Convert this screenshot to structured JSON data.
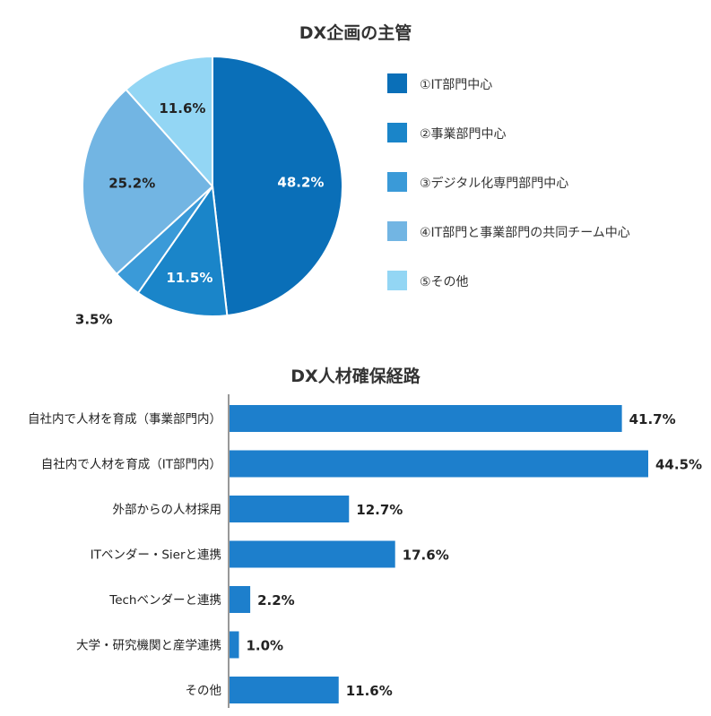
{
  "chart_data": [
    {
      "type": "pie",
      "title": "DX企画の主管",
      "slices": [
        {
          "label": "①IT部門中心",
          "value": 48.2,
          "value_label": "48.2%",
          "color": "#0a6fb8"
        },
        {
          "label": "②事業部門中心",
          "value": 11.5,
          "value_label": "11.5%",
          "color": "#1a85c9"
        },
        {
          "label": "③デジタル化専門部門中心",
          "value": 3.5,
          "value_label": "3.5%",
          "color": "#3a9ad8"
        },
        {
          "label": "④IT部門と事業部門の共同チーム中心",
          "value": 25.2,
          "value_label": "25.2%",
          "color": "#72b5e3"
        },
        {
          "label": "⑤その他",
          "value": 11.6,
          "value_label": "11.6%",
          "color": "#93d6f4"
        }
      ],
      "legend": "right"
    },
    {
      "type": "bar",
      "orientation": "horizontal",
      "title": "DX人材確保経路",
      "categories": [
        "自社内で人材を育成（事業部門内）",
        "自社内で人材を育成（IT部門内）",
        "外部からの人材採用",
        "ITベンダー・Sierと連携",
        "Techベンダーと連携",
        "大学・研究機関と産学連携",
        "その他"
      ],
      "values": [
        41.7,
        44.5,
        12.7,
        17.6,
        2.2,
        1.0,
        11.6
      ],
      "value_labels": [
        "41.7%",
        "44.5%",
        "12.7%",
        "17.6%",
        "2.2%",
        "1.0%",
        "11.6%"
      ],
      "bar_color": "#1d7fcc",
      "xlim": [
        0,
        50
      ],
      "grid": false
    }
  ]
}
